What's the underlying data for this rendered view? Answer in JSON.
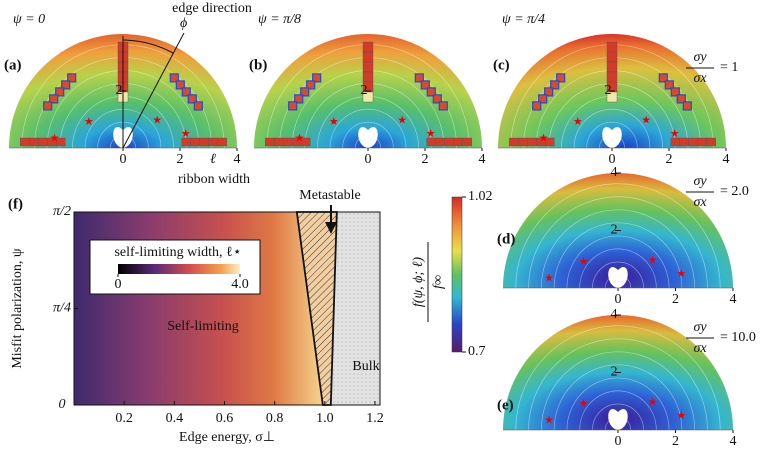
{
  "panels_top": [
    {
      "label": "(a)",
      "psi": "ψ = 0",
      "xlim": [
        -4,
        4
      ],
      "xticks": [
        0,
        2,
        4
      ],
      "yticks": [
        2
      ]
    },
    {
      "label": "(b)",
      "psi": "ψ = π/8",
      "xlim": [
        -4,
        4
      ],
      "xticks": [
        0,
        2,
        4
      ],
      "yticks": [
        2
      ]
    },
    {
      "label": "(c)",
      "psi": "ψ = π/4",
      "xlim": [
        -4,
        4
      ],
      "xticks": [
        0,
        2,
        4
      ],
      "yticks": [
        2
      ],
      "ratio": {
        "num": "σy",
        "den": "σx",
        "eq": "= 1"
      }
    }
  ],
  "annotations": {
    "edge_direction": "edge direction",
    "phi": "ϕ",
    "ell": "ℓ",
    "ribbon_width": "ribbon width"
  },
  "panels_right": [
    {
      "label": "(d)",
      "xlim": [
        -4,
        4
      ],
      "xticks": [
        0,
        2,
        4
      ],
      "yticks": [
        2,
        4
      ],
      "ratio": {
        "num": "σy",
        "den": "σx",
        "eq": "= 2.0"
      }
    },
    {
      "label": "(e)",
      "xlim": [
        -4,
        4
      ],
      "xticks": [
        0,
        2,
        4
      ],
      "yticks": [
        2,
        4
      ],
      "ratio": {
        "num": "σy",
        "den": "σx",
        "eq": "= 10.0"
      }
    }
  ],
  "colorbar": {
    "num": "f(ψ, ϕ; ℓ)",
    "den": "f∞",
    "ticks": [
      {
        "value": 1.02,
        "label": "1.02"
      },
      {
        "value": 0.7,
        "label": "0.7"
      }
    ]
  },
  "chart_data": {
    "type": "phase",
    "label": "(f)",
    "xlabel": "Edge energy, σ⊥",
    "ylabel": "Misfit polarization, ψ",
    "xlim": [
      0,
      1.22
    ],
    "xticks": [
      0.2,
      0.4,
      0.6,
      0.8,
      {
        "value": 1.0,
        "label": "1.0"
      },
      1.2
    ],
    "ylim": [
      0,
      1.5708
    ],
    "yticks": [
      0,
      {
        "value": 0.7854,
        "label": "π/4"
      },
      {
        "value": 1.5708,
        "label": "π/2"
      }
    ],
    "regions": {
      "self_limiting": "Self-limiting",
      "metastable": "Metastable",
      "bulk": "Bulk"
    },
    "legend": {
      "title": "self-limiting width, ℓ⋆",
      "ticks": [
        0,
        {
          "value": 4,
          "label": "4.0"
        }
      ]
    }
  }
}
